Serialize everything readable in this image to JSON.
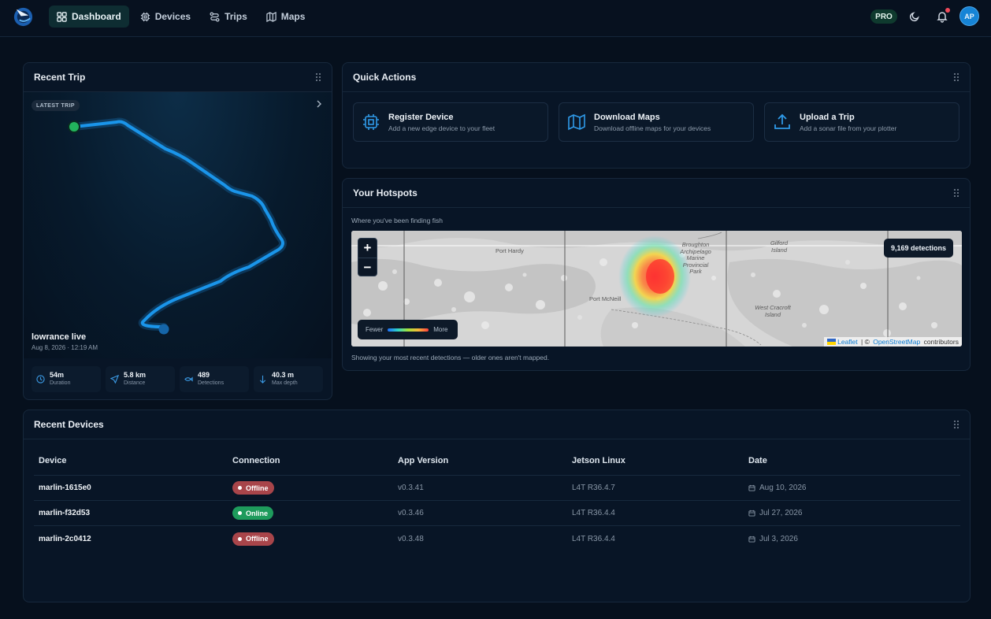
{
  "nav": {
    "items": [
      {
        "label": "Dashboard",
        "icon": "dashboard-icon",
        "active": true
      },
      {
        "label": "Devices",
        "icon": "chip-icon"
      },
      {
        "label": "Trips",
        "icon": "route-icon"
      },
      {
        "label": "Maps",
        "icon": "map-icon"
      }
    ],
    "pro_badge": "PRO",
    "avatar_initials": "AP",
    "accent": "#1684d6"
  },
  "recent_trip": {
    "title": "Recent Trip",
    "badge": "LATEST TRIP",
    "trip_name": "lowrance live",
    "trip_date": "Aug 8, 2026 · 12:19 AM",
    "stats": [
      {
        "value": "54m",
        "label": "Duration",
        "icon": "clock-icon"
      },
      {
        "value": "5.8 km",
        "label": "Distance",
        "icon": "navigation-icon"
      },
      {
        "value": "489",
        "label": "Detections",
        "icon": "fish-icon"
      },
      {
        "value": "40.3 m",
        "label": "Max depth",
        "icon": "arrow-down-icon"
      }
    ]
  },
  "quick_actions": {
    "title": "Quick Actions",
    "items": [
      {
        "title": "Register Device",
        "subtitle": "Add a new edge device to your fleet",
        "icon": "chip-icon"
      },
      {
        "title": "Download Maps",
        "subtitle": "Download offline maps for your devices",
        "icon": "map-icon"
      },
      {
        "title": "Upload a Trip",
        "subtitle": "Add a sonar file from your plotter",
        "icon": "upload-icon"
      }
    ]
  },
  "hotspots": {
    "title": "Your Hotspots",
    "subtitle": "Where you've been finding fish",
    "footer": "Showing your most recent detections — older ones aren't mapped.",
    "detections_badge": "9,169 detections",
    "zoom_in": "+",
    "zoom_out": "−",
    "legend_fewer": "Fewer",
    "legend_more": "More",
    "attribution": {
      "leaflet": "Leaflet",
      "separator": " | © ",
      "osm": "OpenStreetMap",
      "suffix": " contributors"
    },
    "place_labels": {
      "port_hardy": "Port Hardy",
      "port_mcneill": "Port McNeill",
      "broughton": "Broughton\nArchipelago\nMarine\nProvincial\nPark",
      "gilford": "Gilford\nIsland",
      "west_cracroft": "West Cracroft\nIsland"
    }
  },
  "recent_devices": {
    "title": "Recent Devices",
    "columns": [
      "Device",
      "Connection",
      "App Version",
      "Jetson Linux",
      "Date"
    ],
    "rows": [
      {
        "device": "marlin-1615e0",
        "connection": "Offline",
        "app_version": "v0.3.41",
        "jetson": "L4T R36.4.7",
        "date": "Aug 10, 2026"
      },
      {
        "device": "marlin-f32d53",
        "connection": "Online",
        "app_version": "v0.3.46",
        "jetson": "L4T R36.4.4",
        "date": "Jul 27, 2026"
      },
      {
        "device": "marlin-2c0412",
        "connection": "Offline",
        "app_version": "v0.3.48",
        "jetson": "L4T R36.4.4",
        "date": "Jul 3, 2026"
      }
    ],
    "status_colors": {
      "Offline": "#a8454a",
      "Online": "#1e9b5c"
    }
  }
}
